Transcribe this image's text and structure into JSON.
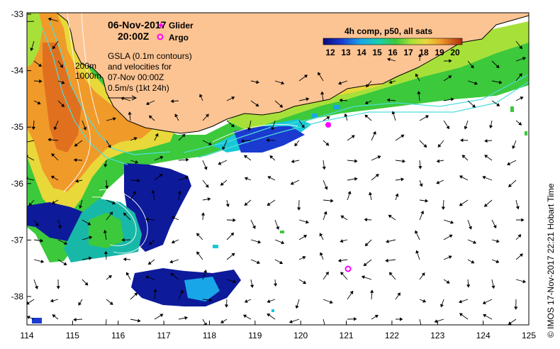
{
  "map": {
    "date": "06-Nov-2017",
    "time": "20:00Z",
    "legend_glider": "Glider",
    "legend_argo": "Argo",
    "gsla_lines": [
      "GSLA (0.1m contours)",
      "and velocities for",
      "07-Nov 00:00Z",
      "0.5m/s (1kt 24h)"
    ],
    "depth_labels": [
      "200m",
      "1000m"
    ],
    "credit": "© IMOS 17-Nov-2017 22:21 Hobart Time",
    "colorbar_title": "4h comp, p50, all sats",
    "colorbar_ticks": [
      "12",
      "13",
      "14",
      "15",
      "16",
      "17",
      "18",
      "19",
      "20"
    ],
    "x_ticks": [
      "114",
      "115",
      "116",
      "117",
      "118",
      "119",
      "120",
      "121",
      "122",
      "123",
      "124",
      "125"
    ],
    "y_ticks": [
      "-33",
      "-34",
      "-35",
      "-36",
      "-37",
      "-38"
    ],
    "colors": {
      "land": "#fdc493",
      "coast": "#000000",
      "glider": "#ff00ff",
      "argo": "#ff00ff",
      "isobath": "#4fdcdc",
      "contour": "#ffffff"
    }
  }
}
